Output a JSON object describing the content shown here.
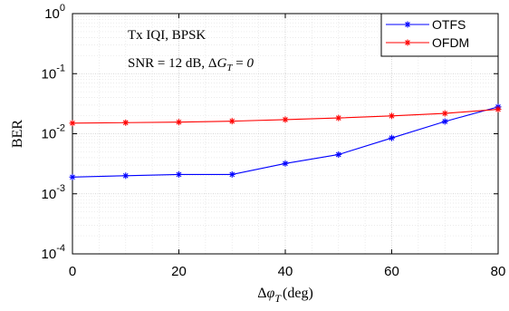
{
  "chart_data": {
    "type": "line",
    "xlabel": "Δφ_T (deg)",
    "ylabel": "BER",
    "xlim": [
      0,
      80
    ],
    "ylim": [
      0.0001,
      1
    ],
    "yscale": "log",
    "grid": true,
    "minor_grid": true,
    "xticks": [
      0,
      20,
      40,
      60,
      80
    ],
    "xtick_labels": [
      "0",
      "20",
      "40",
      "60",
      "80"
    ],
    "yticks": [
      0.0001,
      0.001,
      0.01,
      0.1,
      1
    ],
    "ytick_labels": [
      {
        "base": "10",
        "exp": "-4"
      },
      {
        "base": "10",
        "exp": "-3"
      },
      {
        "base": "10",
        "exp": "-2"
      },
      {
        "base": "10",
        "exp": "-1"
      },
      {
        "base": "10",
        "exp": "0"
      }
    ],
    "x": [
      0,
      10,
      20,
      30,
      40,
      50,
      60,
      70,
      80
    ],
    "series": [
      {
        "name": "OTFS",
        "color": "#0000ff",
        "marker": "asterisk",
        "values": [
          0.0019,
          0.002,
          0.0021,
          0.0021,
          0.0032,
          0.0045,
          0.0085,
          0.016,
          0.028
        ]
      },
      {
        "name": "OFDM",
        "color": "#ff0000",
        "marker": "asterisk",
        "values": [
          0.015,
          0.0153,
          0.0156,
          0.0162,
          0.0172,
          0.0183,
          0.0198,
          0.0218,
          0.0255
        ]
      }
    ],
    "legend_position": "top-right",
    "annotations": [
      {
        "lines": [
          "Tx IQI, BPSK",
          "SNR = 12 dB, ΔG_T = 0"
        ]
      }
    ]
  },
  "text": {
    "ylabel": "BER",
    "xlabel_delta": "Δ",
    "xlabel_phi": "φ",
    "xlabel_sub": "T",
    "xlabel_unit": "(deg)",
    "annot_line1": "Tx IQI, BPSK",
    "annot_line2_prefix": "SNR = 12 dB, ",
    "annot_delta": "Δ",
    "annot_G": "G",
    "annot_sub": "T",
    "annot_eq": " = ",
    "annot_zero": "0"
  }
}
